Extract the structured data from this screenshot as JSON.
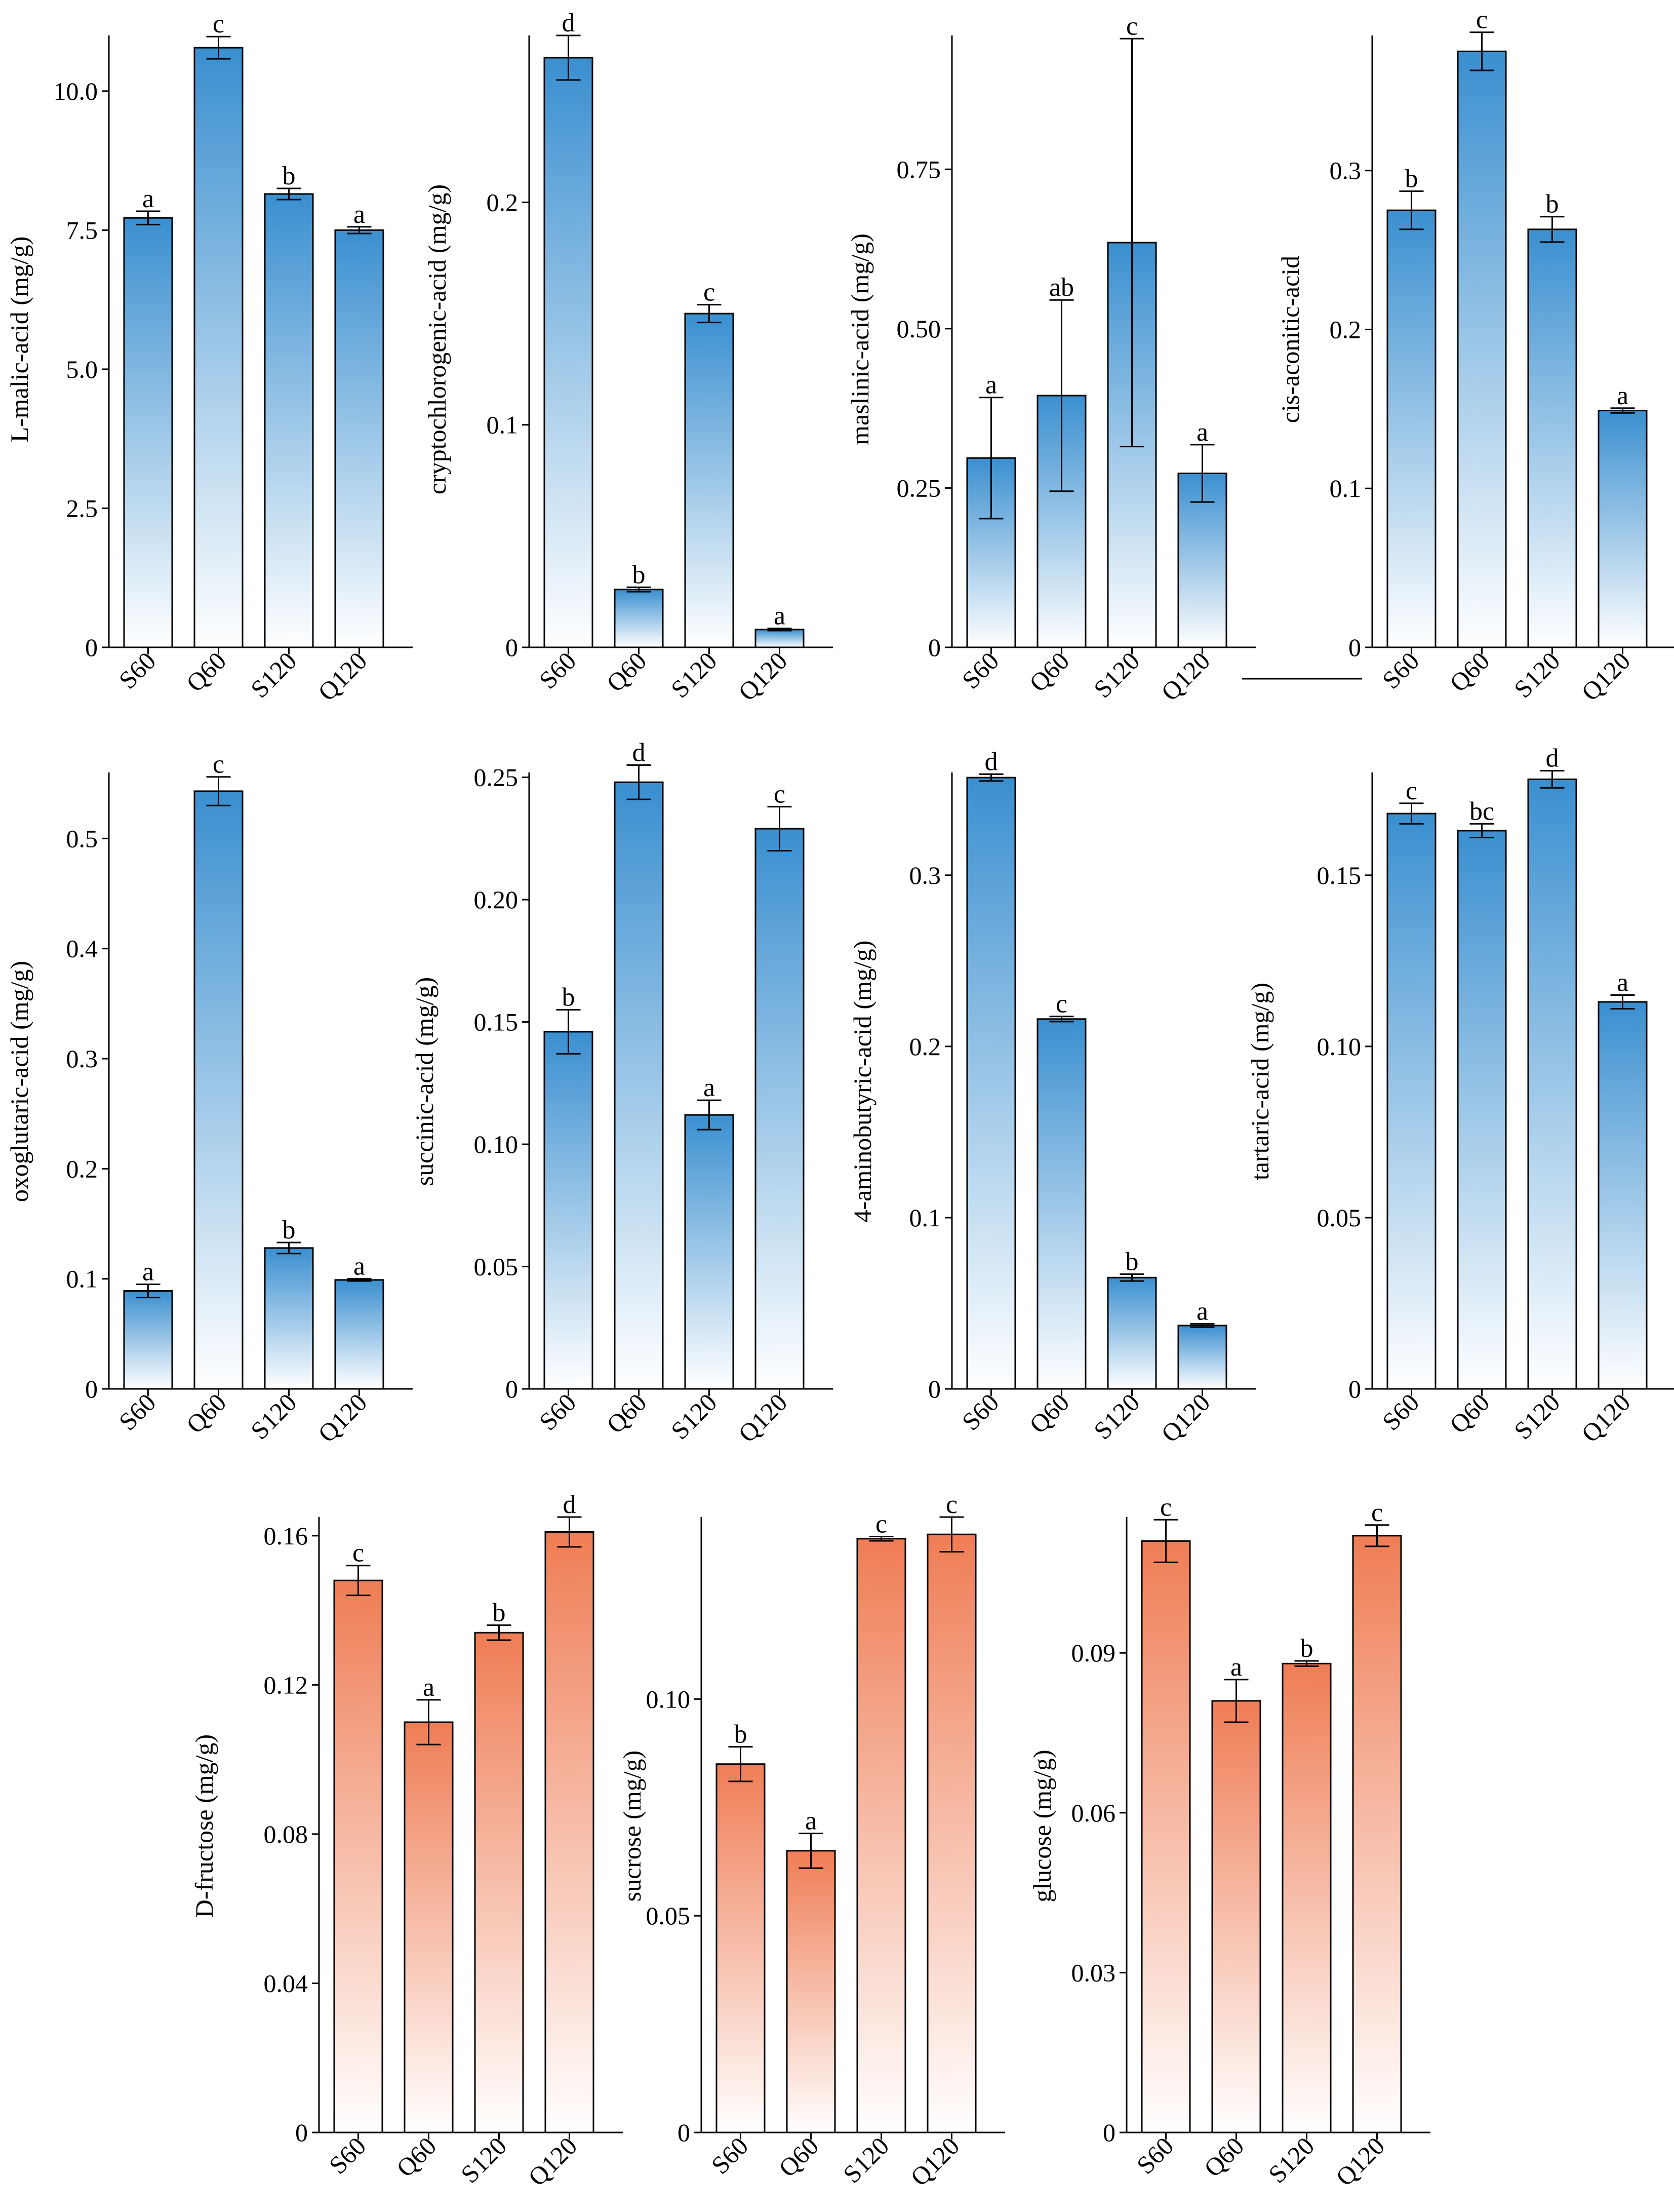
{
  "categories": [
    "S60",
    "Q60",
    "S120",
    "Q120"
  ],
  "colors": {
    "blue_top": "#3a8fd0",
    "blue_bottom": "#ffffff",
    "orange_top": "#ef7d55",
    "orange_bottom": "#ffffff",
    "axis": "#000000"
  },
  "chart_data": [
    {
      "type": "bar",
      "gradient": "blue",
      "ylabel": "L-malic-acid (mg/g)",
      "ylim": [
        0,
        11.0
      ],
      "ticks": [
        0,
        2.5,
        5.0,
        7.5,
        10.0
      ],
      "tick_labels": [
        "0",
        "2.5",
        "5.0",
        "7.5",
        "10.0"
      ],
      "values": [
        7.72,
        10.78,
        8.15,
        7.5
      ],
      "errors": [
        0.12,
        0.2,
        0.1,
        0.06
      ],
      "letters": [
        "a",
        "c",
        "b",
        "a"
      ]
    },
    {
      "type": "bar",
      "gradient": "blue",
      "ylabel": "cryptochlorogenic-acid (mg/g)",
      "ylim": [
        0,
        0.275
      ],
      "ticks": [
        0,
        0.1,
        0.2
      ],
      "tick_labels": [
        "0",
        "0.1",
        "0.2"
      ],
      "values": [
        0.265,
        0.026,
        0.15,
        0.008
      ],
      "errors": [
        0.01,
        0.001,
        0.004,
        0.0005
      ],
      "letters": [
        "d",
        "b",
        "c",
        "a"
      ]
    },
    {
      "type": "bar",
      "gradient": "blue",
      "ylabel": "maslinic-acid (mg/g)",
      "ylim": [
        0,
        0.96
      ],
      "ticks": [
        0,
        0.25,
        0.5,
        0.75
      ],
      "tick_labels": [
        "0",
        "0.25",
        "0.50",
        "0.75"
      ],
      "values": [
        0.297,
        0.395,
        0.635,
        0.273
      ],
      "errors": [
        0.095,
        0.15,
        0.32,
        0.045
      ],
      "letters": [
        "a",
        "ab",
        "c",
        "a"
      ]
    },
    {
      "type": "bar",
      "gradient": "blue",
      "ylabel": "cis-aconitic-acid",
      "ylim": [
        0,
        0.385
      ],
      "ticks": [
        0,
        0.1,
        0.2,
        0.3
      ],
      "tick_labels": [
        "0",
        "0.1",
        "0.2",
        "0.3"
      ],
      "values": [
        0.275,
        0.375,
        0.263,
        0.149
      ],
      "errors": [
        0.012,
        0.012,
        0.008,
        0.0015
      ],
      "letters": [
        "b",
        "c",
        "b",
        "a"
      ]
    },
    {
      "type": "bar",
      "gradient": "blue",
      "ylabel": "oxoglutaric-acid (mg/g)",
      "ylim": [
        0,
        0.56
      ],
      "ticks": [
        0,
        0.1,
        0.2,
        0.3,
        0.4,
        0.5
      ],
      "tick_labels": [
        "0",
        "0.1",
        "0.2",
        "0.3",
        "0.4",
        "0.5"
      ],
      "values": [
        0.089,
        0.543,
        0.128,
        0.099
      ],
      "errors": [
        0.006,
        0.013,
        0.005,
        0.001
      ],
      "letters": [
        "a",
        "c",
        "b",
        "a"
      ]
    },
    {
      "type": "bar",
      "gradient": "blue",
      "ylabel": "succinic-acid (mg/g)",
      "ylim": [
        0,
        0.252
      ],
      "ticks": [
        0,
        0.05,
        0.1,
        0.15,
        0.2,
        0.25
      ],
      "tick_labels": [
        "0",
        "0.05",
        "0.10",
        "0.15",
        "0.20",
        "0.25"
      ],
      "values": [
        0.146,
        0.248,
        0.112,
        0.229
      ],
      "errors": [
        0.009,
        0.007,
        0.006,
        0.009
      ],
      "letters": [
        "b",
        "d",
        "a",
        "c"
      ]
    },
    {
      "type": "bar",
      "gradient": "blue",
      "ylabel": "4-aminobutyric-acid (mg/g)",
      "ylim": [
        0,
        0.36
      ],
      "ticks": [
        0,
        0.1,
        0.2,
        0.3
      ],
      "tick_labels": [
        "0",
        "0.1",
        "0.2",
        "0.3"
      ],
      "values": [
        0.357,
        0.216,
        0.065,
        0.037
      ],
      "errors": [
        0.002,
        0.0015,
        0.002,
        0.001
      ],
      "letters": [
        "d",
        "c",
        "b",
        "a"
      ]
    },
    {
      "type": "bar",
      "gradient": "blue",
      "ylabel": "tartaric-acid (mg/g)",
      "ylim": [
        0,
        0.18
      ],
      "ticks": [
        0,
        0.05,
        0.1,
        0.15
      ],
      "tick_labels": [
        "0",
        "0.05",
        "0.10",
        "0.15"
      ],
      "values": [
        0.168,
        0.163,
        0.178,
        0.113
      ],
      "errors": [
        0.003,
        0.002,
        0.0025,
        0.002
      ],
      "letters": [
        "c",
        "bc",
        "d",
        "a"
      ]
    },
    {
      "type": "bar",
      "gradient": "orange",
      "ylabel": "D-fructose (mg/g)",
      "ylim": [
        0,
        0.165
      ],
      "ticks": [
        0,
        0.04,
        0.08,
        0.12,
        0.16
      ],
      "tick_labels": [
        "0",
        "0.04",
        "0.08",
        "0.12",
        "0.16"
      ],
      "values": [
        0.148,
        0.11,
        0.134,
        0.161
      ],
      "errors": [
        0.004,
        0.006,
        0.002,
        0.004
      ],
      "letters": [
        "c",
        "a",
        "b",
        "d"
      ]
    },
    {
      "type": "bar",
      "gradient": "orange",
      "ylabel": "sucrose (mg/g)",
      "ylim": [
        0,
        0.142
      ],
      "ticks": [
        0,
        0.05,
        0.1
      ],
      "tick_labels": [
        "0",
        "0.05",
        "0.10"
      ],
      "values": [
        0.085,
        0.065,
        0.137,
        0.138
      ],
      "errors": [
        0.004,
        0.004,
        0.0005,
        0.004
      ],
      "letters": [
        "b",
        "a",
        "c",
        "c"
      ]
    },
    {
      "type": "bar",
      "gradient": "orange",
      "ylabel": "glucose (mg/g)",
      "ylim": [
        0,
        0.1155
      ],
      "ticks": [
        0,
        0.03,
        0.06,
        0.09
      ],
      "tick_labels": [
        "0",
        "0.03",
        "0.06",
        "0.09"
      ],
      "values": [
        0.111,
        0.081,
        0.088,
        0.112
      ],
      "errors": [
        0.004,
        0.004,
        0.0005,
        0.002
      ],
      "letters": [
        "c",
        "a",
        "b",
        "c"
      ]
    }
  ]
}
